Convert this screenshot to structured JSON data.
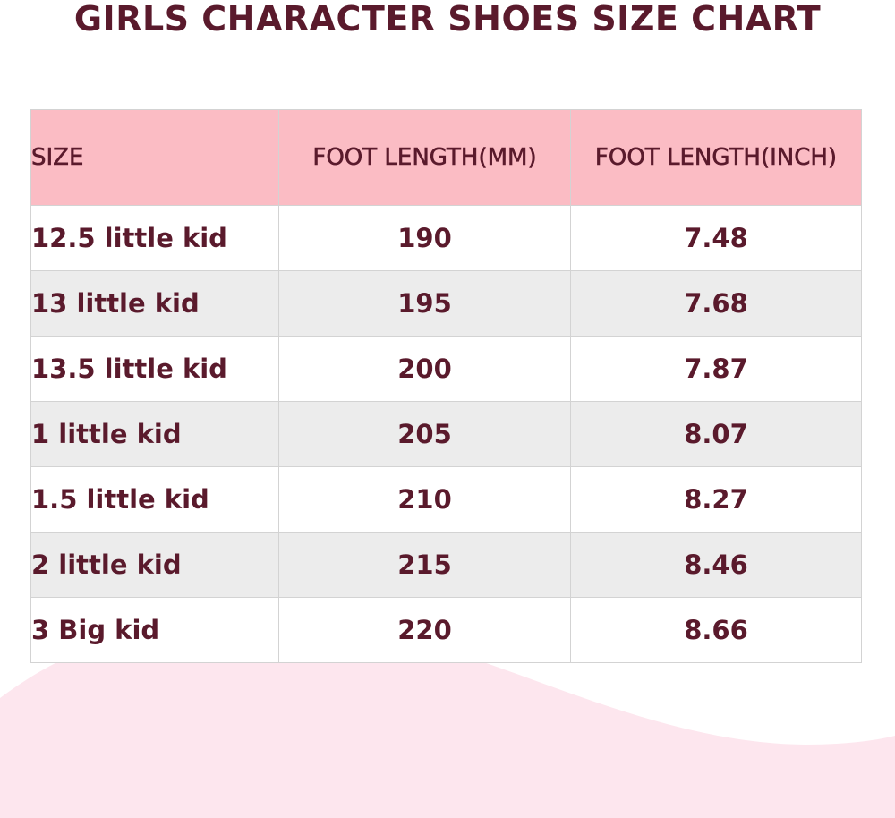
{
  "title": "GIRLS CHARACTER SHOES SIZE CHART",
  "colors": {
    "text": "#5a1a2c",
    "header_bg": "#fbbcc4",
    "row_white": "#ffffff",
    "row_gray": "#ececec",
    "wave": "#fde6ee"
  },
  "table": {
    "headers": [
      "SIZE",
      "FOOT LENGTH(MM)",
      "FOOT LENGTH(INCH)"
    ],
    "rows": [
      [
        "12.5 little kid",
        "190",
        "7.48"
      ],
      [
        "13 little kid",
        "195",
        "7.68"
      ],
      [
        "13.5 little kid",
        "200",
        "7.87"
      ],
      [
        "1 little kid",
        "205",
        "8.07"
      ],
      [
        "1.5 little kid",
        "210",
        "8.27"
      ],
      [
        "2 little kid",
        "215",
        "8.46"
      ],
      [
        "3 Big kid",
        "220",
        "8.66"
      ]
    ]
  }
}
